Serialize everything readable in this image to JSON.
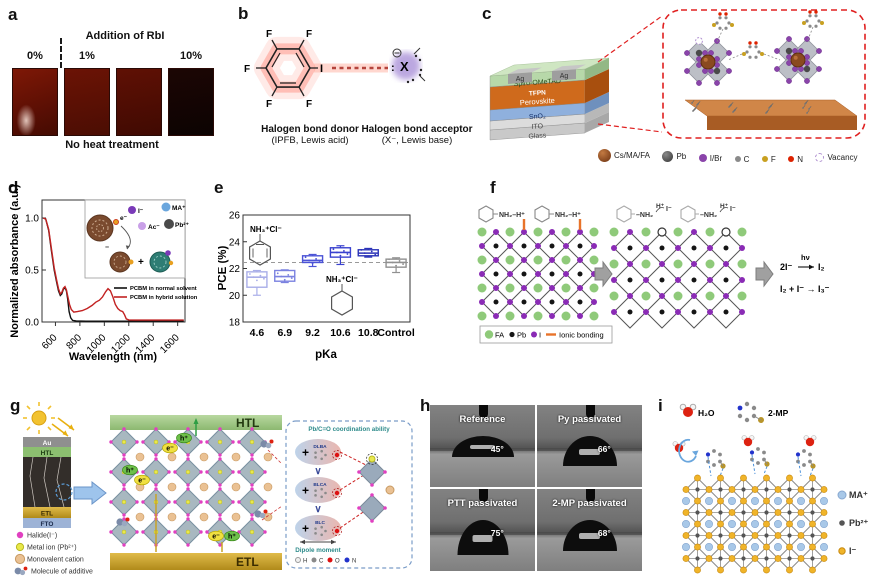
{
  "panels": {
    "a": {
      "label": "a",
      "header": "Addition of RbI",
      "sample_labels": [
        "0%",
        "1%",
        "10%"
      ],
      "caption": "No heat treatment"
    },
    "b": {
      "label": "b",
      "atom_f": "F",
      "atom_i": "I",
      "atom_x": "X",
      "charge": "−",
      "donor_title": "Halogen bond donor",
      "donor_subtitle": "(IPFB, Lewis acid)",
      "acceptor_title": "Halogen bond acceptor",
      "acceptor_subtitle": "(X⁻, Lewis base)"
    },
    "c": {
      "label": "c",
      "electrodes": [
        "Ag",
        "Ag"
      ],
      "layer_names": {
        "spiro": "Spiro-OMeTAD",
        "tfpn": "TFPN",
        "perovskite": "Perovskite",
        "sno2": "SnO₂",
        "ito": "ITO",
        "glass": "Glass"
      },
      "legend": [
        {
          "label": "Cs/MA/FA",
          "color": "#8a4a1f"
        },
        {
          "label": "Pb",
          "color": "#4a4a4a"
        },
        {
          "label": "I/Br",
          "color": "#8a44aa"
        },
        {
          "label": "C",
          "color": "#8a8a8a"
        },
        {
          "label": "F",
          "color": "#c8a020"
        },
        {
          "label": "N",
          "color": "#dd2200"
        },
        {
          "label": "Vacancy",
          "color": "#b090d0"
        }
      ]
    },
    "d": {
      "label": "d",
      "inset": {
        "i": "I⁻",
        "ac": "Ac⁻",
        "ma": "MA⁺",
        "pb": "Pb²⁺",
        "e": "e⁻",
        "anion": "⁻",
        "plus": "+"
      }
    },
    "e": {
      "label": "e",
      "ann1": "NH₃⁺Cl⁻",
      "ann2": "NH₃⁺Cl⁻"
    },
    "f": {
      "label": "f",
      "mol": "NH₂–H⁺",
      "nh2": "–NH₂",
      "h": "H⁺",
      "i": "I⁻",
      "legend": {
        "fa": "FA",
        "pb": "Pb",
        "i": "I",
        "ionic": "Ionic bonding"
      },
      "rxn1": {
        "lhs": "2I⁻",
        "over": "hν",
        "rhs": "I₂"
      },
      "rxn2": "I₂ + I⁻ → I₃⁻"
    },
    "g": {
      "label": "g",
      "stack": {
        "au": "Au",
        "htl": "HTL",
        "etl": "ETL",
        "fto": "FTO"
      },
      "big": {
        "htl": "HTL",
        "etl": "ETL"
      },
      "legend": [
        "Halide(I⁻)",
        "Metal ion (Pb²⁺)",
        "Monovalent cation",
        "Molecule of additive"
      ],
      "carriers": {
        "e": "e⁻",
        "h": "h⁺"
      },
      "inset": {
        "title": "Pb/C=O coordination ability",
        "mols": [
          "DLBA",
          "BLCA",
          "BLC"
        ],
        "vs": "∨",
        "plus": "+",
        "dipole": "Dipole moment",
        "atoms": [
          {
            "l": "H",
            "c": "#f0f0f0"
          },
          {
            "l": "C",
            "c": "#8a8a8a"
          },
          {
            "l": "O",
            "c": "#dd1111"
          },
          {
            "l": "N",
            "c": "#2233cc"
          }
        ]
      }
    },
    "h": {
      "label": "h",
      "cells": [
        {
          "name": "Reference",
          "angle": "45°",
          "angle_deg": 45
        },
        {
          "name": "Py passivated",
          "angle": "66°",
          "angle_deg": 66
        },
        {
          "name": "PTT passivated",
          "angle": "75°",
          "angle_deg": 75
        },
        {
          "name": "2-MP passivated",
          "angle": "68°",
          "angle_deg": 68
        }
      ]
    },
    "i": {
      "label": "i",
      "water": "H₂O",
      "mp": "2-MP",
      "legend": [
        {
          "label": "MA⁺",
          "color": "#a8c8e8"
        },
        {
          "label": "Pb²⁺",
          "color": "#555555"
        },
        {
          "label": "I⁻",
          "color": "#f0b429"
        }
      ]
    }
  },
  "chart_data": [
    {
      "id": "absorbance",
      "type": "line",
      "xlabel": "Wavelength (nm)",
      "ylabel": "Normalized absorbance (a.u.)",
      "xlim": [
        490,
        1660
      ],
      "ylim": [
        -0.03,
        1.1
      ],
      "xticks": [
        600,
        800,
        1000,
        1200,
        1400,
        1600
      ],
      "yticks": [
        0.0,
        0.5,
        1.0
      ],
      "grid": false,
      "legend_position": "right-middle",
      "series": [
        {
          "name": "PCBM in normal solvent",
          "color": "#111111",
          "x": [
            500,
            520,
            545,
            565,
            590,
            610,
            625,
            640,
            652,
            665,
            678,
            690,
            700,
            712,
            725,
            740,
            770,
            850,
            1000,
            1200,
            1400,
            1650
          ],
          "y": [
            1.0,
            0.99,
            0.88,
            0.7,
            0.5,
            0.38,
            0.3,
            0.255,
            0.27,
            0.315,
            0.33,
            0.3,
            0.22,
            0.1,
            0.04,
            0.015,
            0.01,
            0.008,
            0.008,
            0.008,
            0.008,
            0.008
          ]
        },
        {
          "name": "PCBM in hybrid solution",
          "color": "#c22222",
          "x": [
            500,
            520,
            545,
            565,
            590,
            610,
            625,
            640,
            652,
            665,
            678,
            690,
            700,
            715,
            730,
            750,
            780,
            820,
            860,
            900,
            930,
            960,
            985,
            1010,
            1030,
            1050,
            1070,
            1090,
            1110,
            1130,
            1150,
            1165,
            1180,
            1200,
            1250,
            1350,
            1450,
            1550,
            1650
          ],
          "y": [
            1.0,
            0.99,
            0.89,
            0.72,
            0.52,
            0.4,
            0.32,
            0.27,
            0.285,
            0.325,
            0.34,
            0.31,
            0.25,
            0.17,
            0.12,
            0.095,
            0.1,
            0.11,
            0.13,
            0.16,
            0.19,
            0.21,
            0.24,
            0.29,
            0.32,
            0.3,
            0.24,
            0.17,
            0.13,
            0.11,
            0.1,
            0.07,
            0.03,
            0.02,
            0.018,
            0.018,
            0.018,
            0.018,
            0.018
          ]
        }
      ]
    },
    {
      "id": "pce-boxplot",
      "type": "box",
      "xlabel": "pKa",
      "ylabel": "PCE (%)",
      "ylim": [
        18,
        26
      ],
      "yticks": [
        18,
        20,
        22,
        24,
        26
      ],
      "categories": [
        "4.6",
        "6.9",
        "9.2",
        "10.6",
        "10.8",
        "Control"
      ],
      "reference_line": 22.45,
      "boxes": [
        {
          "low": 20.0,
          "q1": 20.6,
          "median": 21.35,
          "q3": 21.75,
          "high": 21.85,
          "color": "#a9aee8"
        },
        {
          "low": 20.95,
          "q1": 21.05,
          "median": 21.4,
          "q3": 21.85,
          "high": 21.9,
          "color": "#7b82e0"
        },
        {
          "low": 22.15,
          "q1": 22.45,
          "median": 22.6,
          "q3": 22.95,
          "high": 23.05,
          "color": "#4b53d6"
        },
        {
          "low": 22.3,
          "q1": 22.85,
          "median": 23.2,
          "q3": 23.55,
          "high": 23.7,
          "color": "#3a42cf"
        },
        {
          "low": 22.85,
          "q1": 22.95,
          "median": 23.15,
          "q3": 23.4,
          "high": 23.5,
          "color": "#2b33b8"
        },
        {
          "low": 21.7,
          "q1": 22.1,
          "median": 22.45,
          "q3": 22.7,
          "high": 22.8,
          "color": "#909090"
        }
      ]
    }
  ]
}
